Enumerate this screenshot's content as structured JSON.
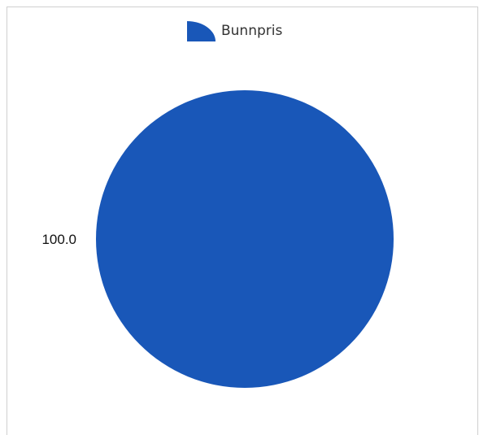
{
  "chart_data": {
    "type": "pie",
    "categories": [
      "Bunnpris"
    ],
    "values": [
      100.0
    ],
    "data_labels": [
      "100.0"
    ],
    "colors": [
      "#1957b8"
    ],
    "legend_position": "top",
    "grid": false
  }
}
